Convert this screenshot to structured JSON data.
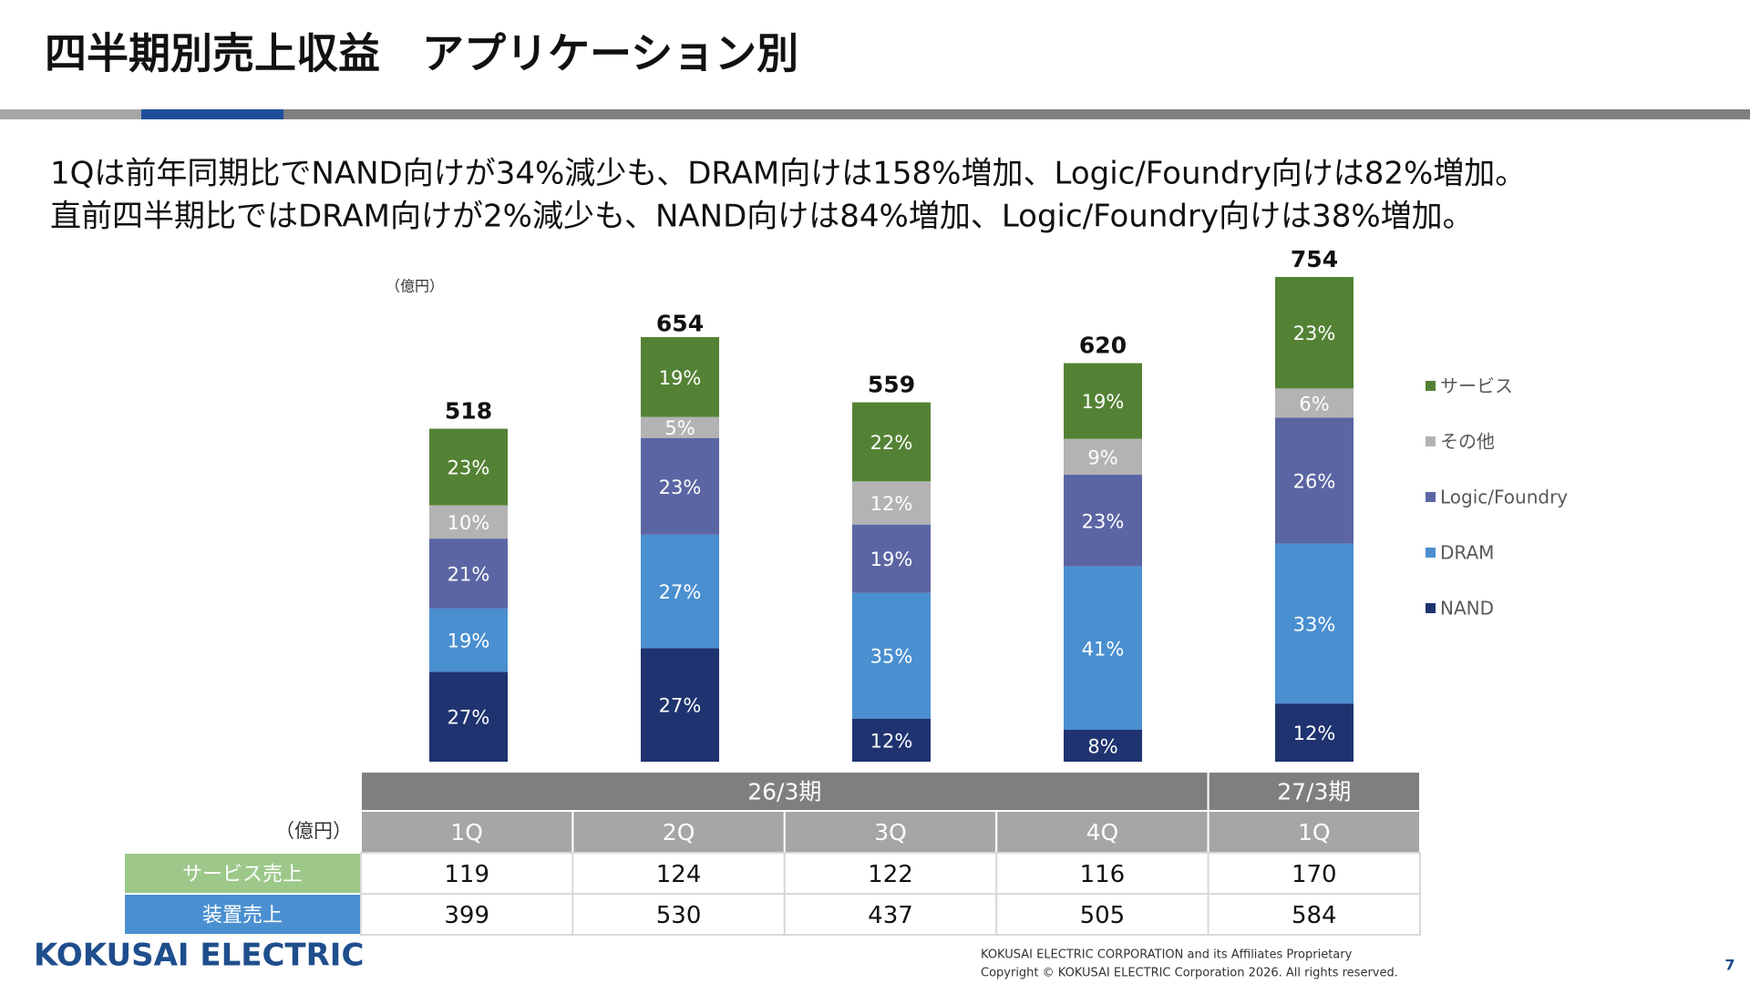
{
  "header": {
    "title": "四半期別売上収益　アプリケーション別"
  },
  "summary": [
    "1Qは前年同期比でNAND向けが34%減少も、DRAM向けは158%増加、Logic/Foundry向けは82%増加。",
    "直前四半期比ではDRAM向けが2%減少も、NAND向けは84%増加、Logic/Foundry向けは38%増加。"
  ],
  "chart_data": {
    "type": "stacked-percent-bar",
    "unit": "（億円）",
    "totals": [
      518,
      654,
      559,
      620,
      754
    ],
    "series": [
      {
        "name": "NAND",
        "color": "#1f3370",
        "values": [
          27,
          27,
          12,
          8,
          12
        ],
        "value_labels": [
          "27%",
          "27%",
          "12%",
          "8%",
          "12%"
        ]
      },
      {
        "name": "DRAM",
        "color": "#4a8fd0",
        "values": [
          19,
          27,
          35,
          41,
          33
        ],
        "value_labels": [
          "19%",
          "27%",
          "35%",
          "41%",
          "33%"
        ]
      },
      {
        "name": "Logic/Foundry",
        "color": "#5b65a3",
        "values": [
          21,
          23,
          19,
          23,
          26
        ],
        "value_labels": [
          "21%",
          "23%",
          "19%",
          "23%",
          "26%"
        ]
      },
      {
        "name": "その他",
        "color": "#b3b3b3",
        "values": [
          10,
          5,
          12,
          9,
          6
        ],
        "value_labels": [
          "10%",
          "5%",
          "12%",
          "9%",
          "6%"
        ]
      },
      {
        "name": "サービス",
        "color": "#548235",
        "values": [
          23,
          19,
          22,
          19,
          23
        ],
        "value_labels": [
          "23%",
          "19%",
          "22%",
          "19%",
          "23%"
        ]
      }
    ]
  },
  "table": {
    "unit": "（億円）",
    "groups": [
      {
        "label": "26/3期",
        "span": 4
      },
      {
        "label": "27/3期",
        "span": 1
      }
    ],
    "columns": [
      "1Q",
      "2Q",
      "3Q",
      "4Q",
      "1Q"
    ],
    "rows": [
      {
        "label": "サービス売上",
        "values": [
          119,
          124,
          122,
          116,
          170
        ]
      },
      {
        "label": "装置売上",
        "values": [
          399,
          530,
          437,
          505,
          584
        ]
      }
    ]
  },
  "footer": {
    "logo": "KOKUSAI ELECTRIC",
    "notice": [
      "KOKUSAI ELECTRIC CORPORATION and its Affiliates Proprietary",
      "Copyright © KOKUSAI ELECTRIC Corporation 2026. All rights reserved."
    ],
    "page": "7"
  }
}
